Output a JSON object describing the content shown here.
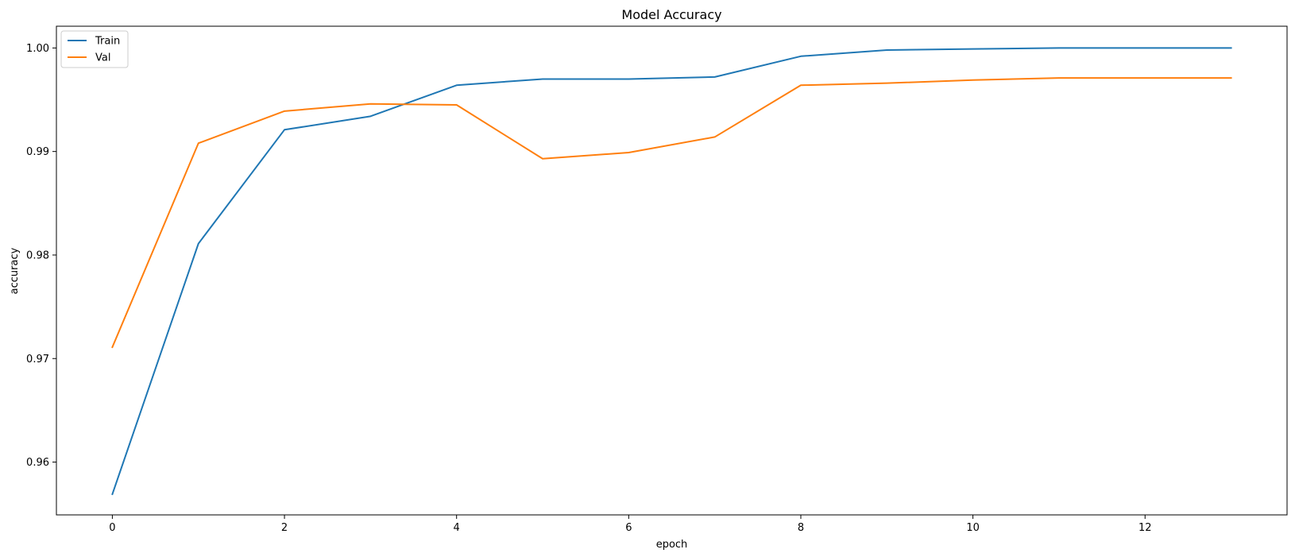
{
  "chart_data": {
    "type": "line",
    "title": "Model Accuracy",
    "xlabel": "epoch",
    "ylabel": "accuracy",
    "x": [
      0,
      1,
      2,
      3,
      4,
      5,
      6,
      7,
      8,
      9,
      10,
      11,
      12,
      13
    ],
    "xlim": [
      -0.65,
      13.65
    ],
    "ylim": [
      0.9549,
      1.0021
    ],
    "xticks": [
      0,
      2,
      4,
      6,
      8,
      10,
      12
    ],
    "xtick_labels": [
      "0",
      "2",
      "4",
      "6",
      "8",
      "10",
      "12"
    ],
    "yticks": [
      0.96,
      0.97,
      0.98,
      0.99,
      1.0
    ],
    "ytick_labels": [
      "0.96",
      "0.97",
      "0.98",
      "0.99",
      "1.00"
    ],
    "grid": false,
    "legend_position": "top-left",
    "series": [
      {
        "name": "Train",
        "color": "#1f77b4",
        "values": [
          0.9569,
          0.9811,
          0.9921,
          0.9934,
          0.9964,
          0.997,
          0.997,
          0.9972,
          0.9992,
          0.9998,
          0.9999,
          1.0,
          1.0,
          1.0
        ]
      },
      {
        "name": "Val",
        "color": "#ff7f0e",
        "values": [
          0.9711,
          0.9908,
          0.9939,
          0.9946,
          0.9945,
          0.9893,
          0.9899,
          0.9914,
          0.9964,
          0.9966,
          0.9969,
          0.9971,
          0.9971,
          0.9971
        ]
      }
    ]
  }
}
